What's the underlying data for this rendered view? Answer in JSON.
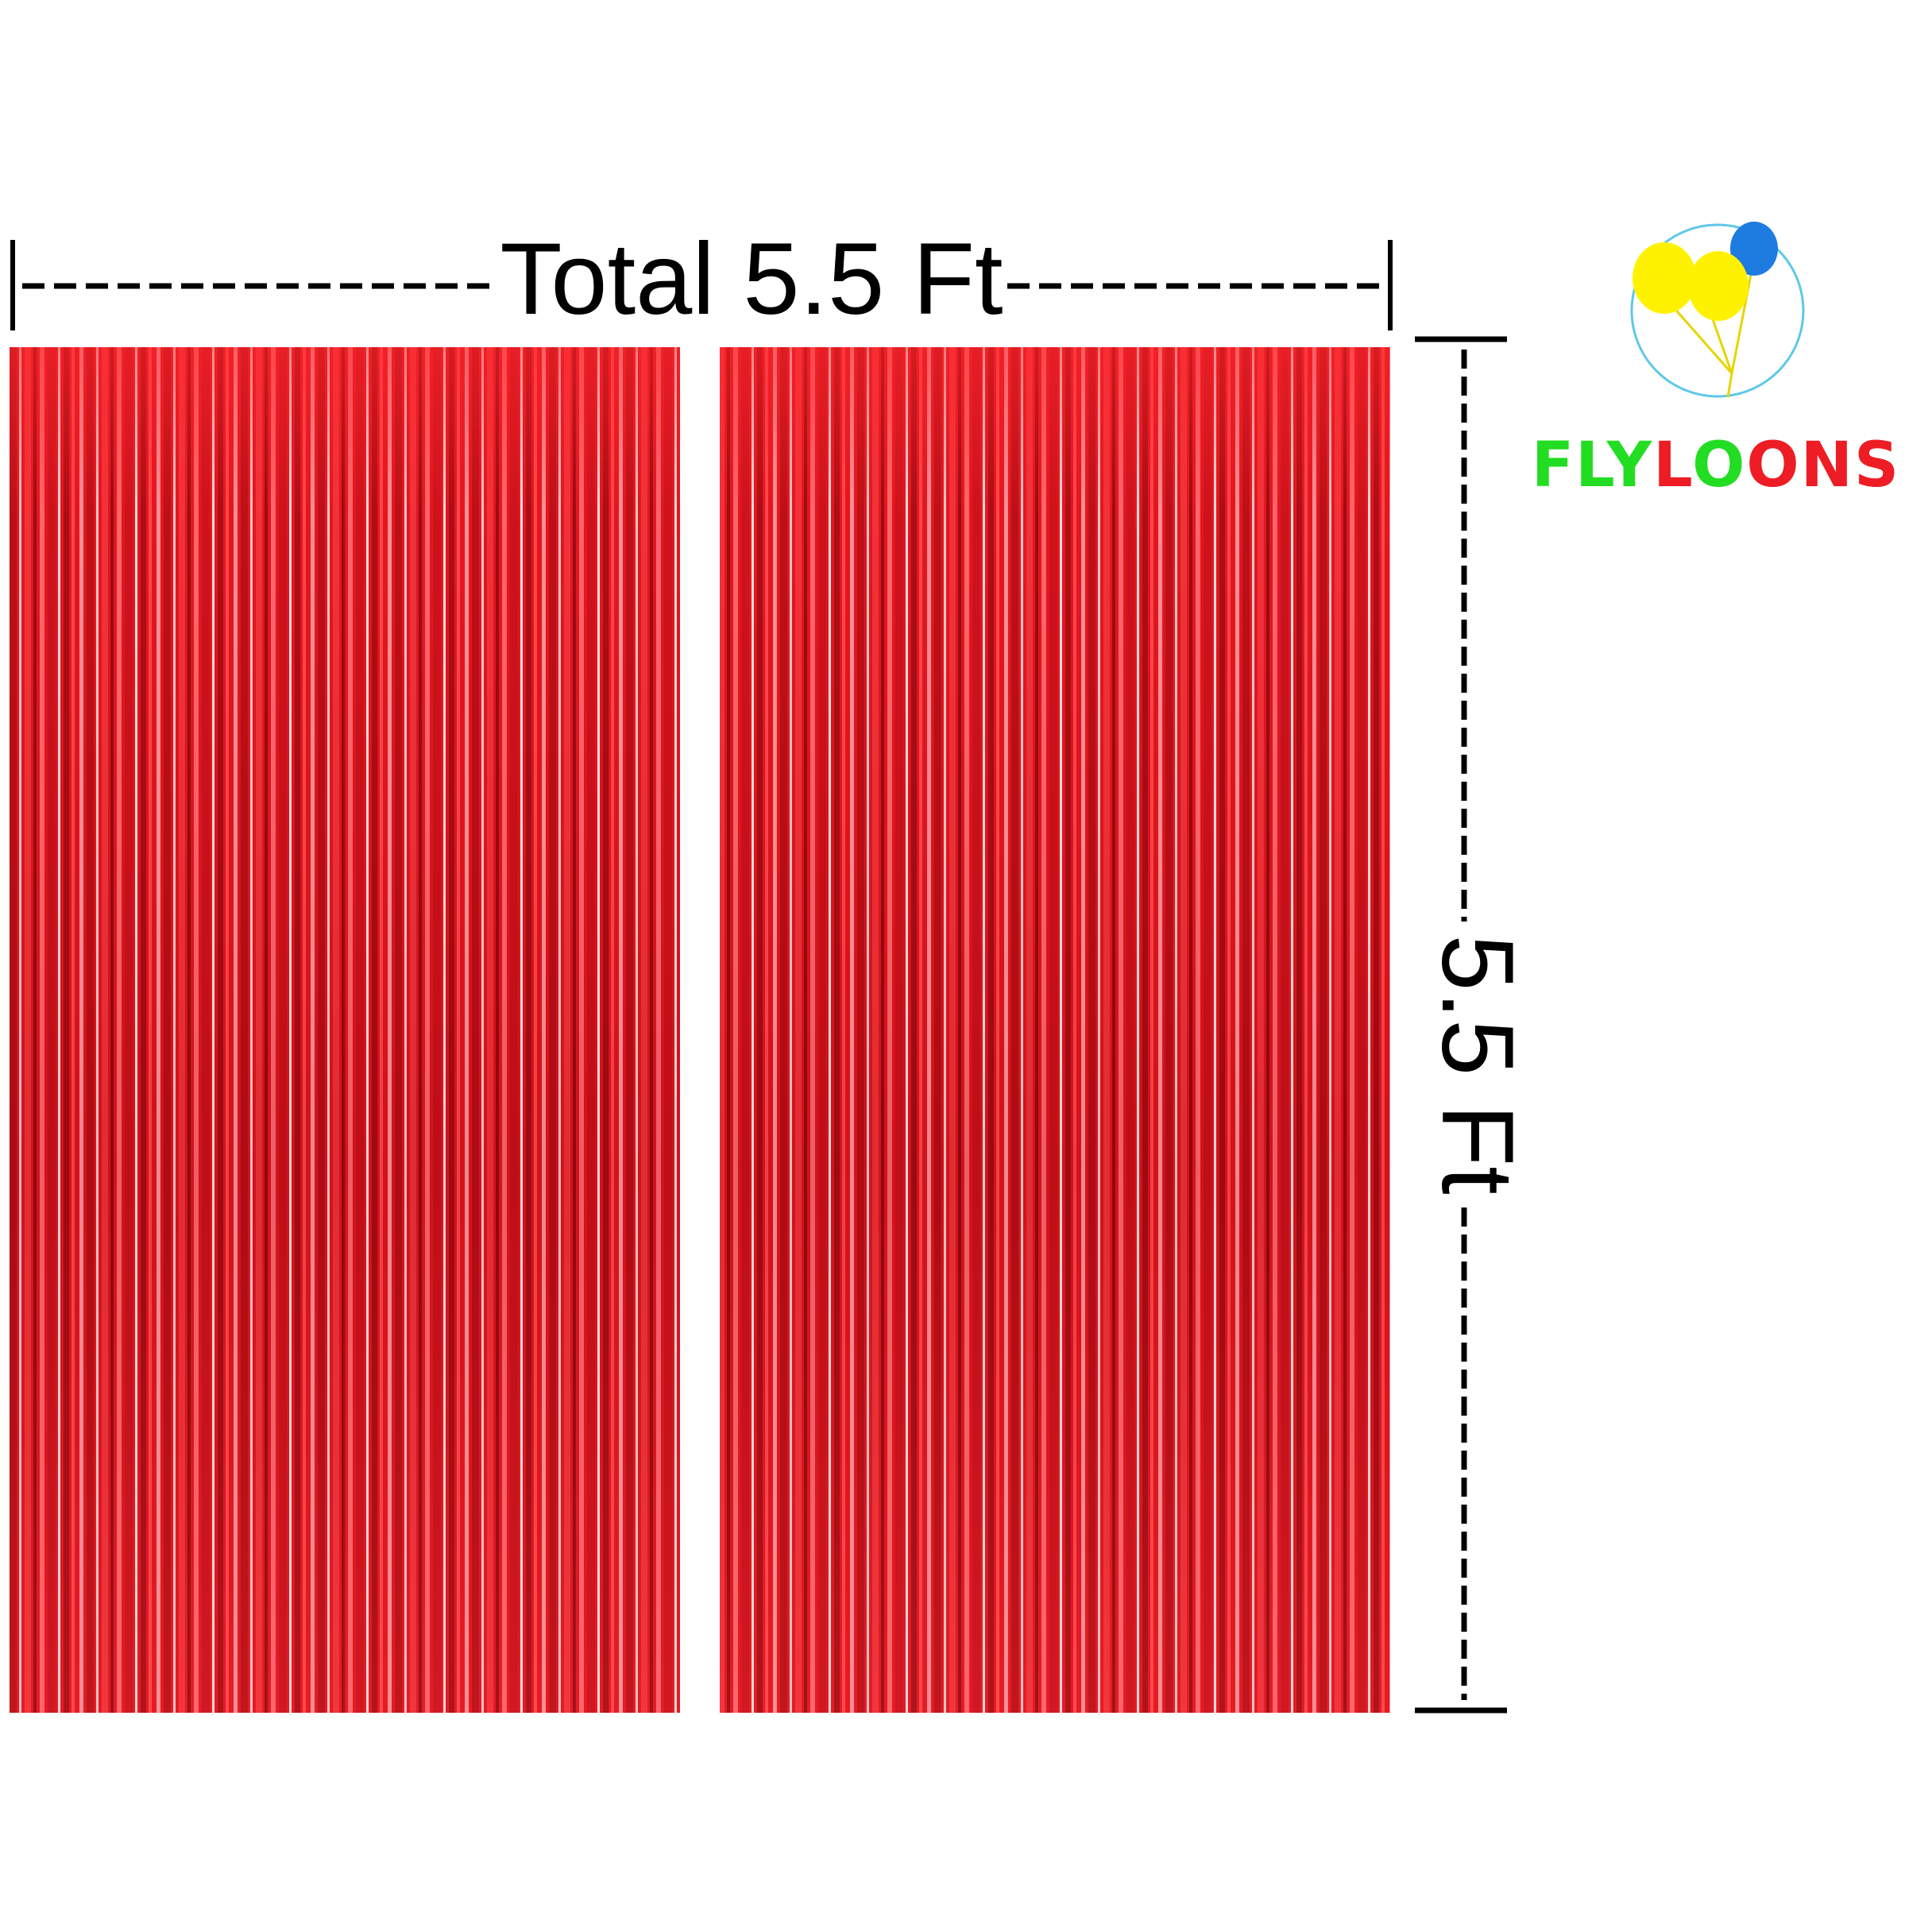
{
  "dimensions": {
    "width_label": "Total 5.5 Ft",
    "height_label": "5.5 Ft"
  },
  "logo": {
    "brand": "FLYLOONS"
  }
}
